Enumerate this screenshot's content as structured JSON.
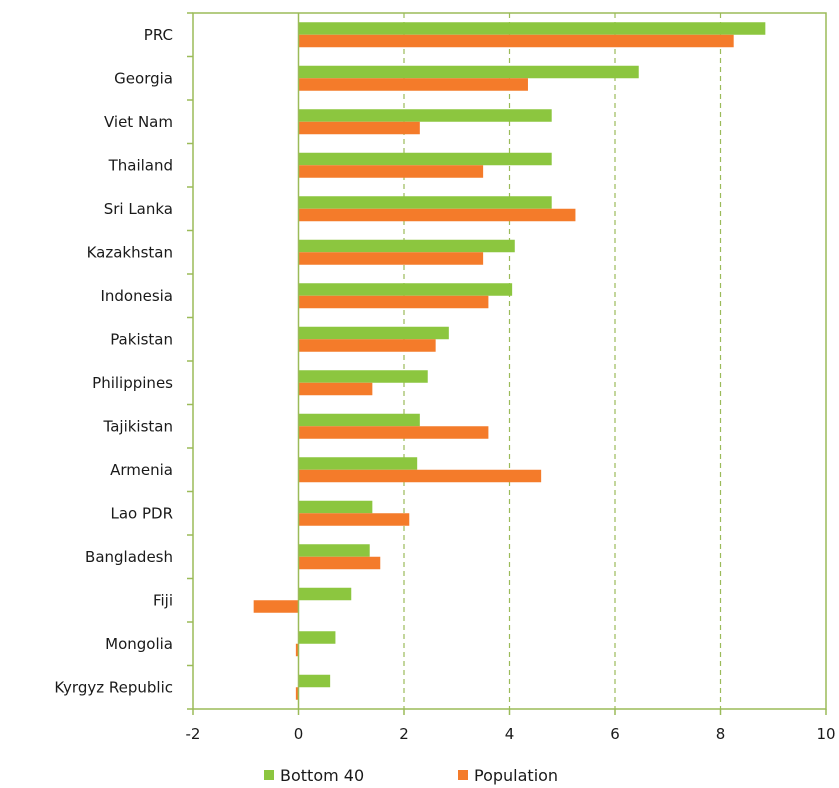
{
  "chart_data": {
    "type": "bar",
    "orientation": "horizontal",
    "categories": [
      "PRC",
      "Georgia",
      "Viet Nam",
      "Thailand",
      "Sri Lanka",
      "Kazakhstan",
      "Indonesia",
      "Pakistan",
      "Philippines",
      "Tajikistan",
      "Armenia",
      "Lao PDR",
      "Bangladesh",
      "Fiji",
      "Mongolia",
      "Kyrgyz Republic"
    ],
    "series": [
      {
        "name": "Bottom 40",
        "color": "#8cc63f",
        "values": [
          8.85,
          6.45,
          4.8,
          4.8,
          4.8,
          4.1,
          4.05,
          2.85,
          2.45,
          2.3,
          2.25,
          1.4,
          1.35,
          1.0,
          0.7,
          0.6
        ]
      },
      {
        "name": "Population",
        "color": "#f47b2a",
        "values": [
          8.25,
          4.35,
          2.3,
          3.5,
          5.25,
          3.5,
          3.6,
          2.6,
          1.4,
          3.6,
          4.6,
          2.1,
          1.55,
          -0.85,
          -0.05,
          -0.05
        ]
      }
    ],
    "xlim": [
      -2,
      10
    ],
    "xticks": [
      -2,
      0,
      2,
      4,
      6,
      8,
      10
    ],
    "grid": "vertical-dashed",
    "legend": "bottom",
    "frame_color": "#9bbb59"
  }
}
